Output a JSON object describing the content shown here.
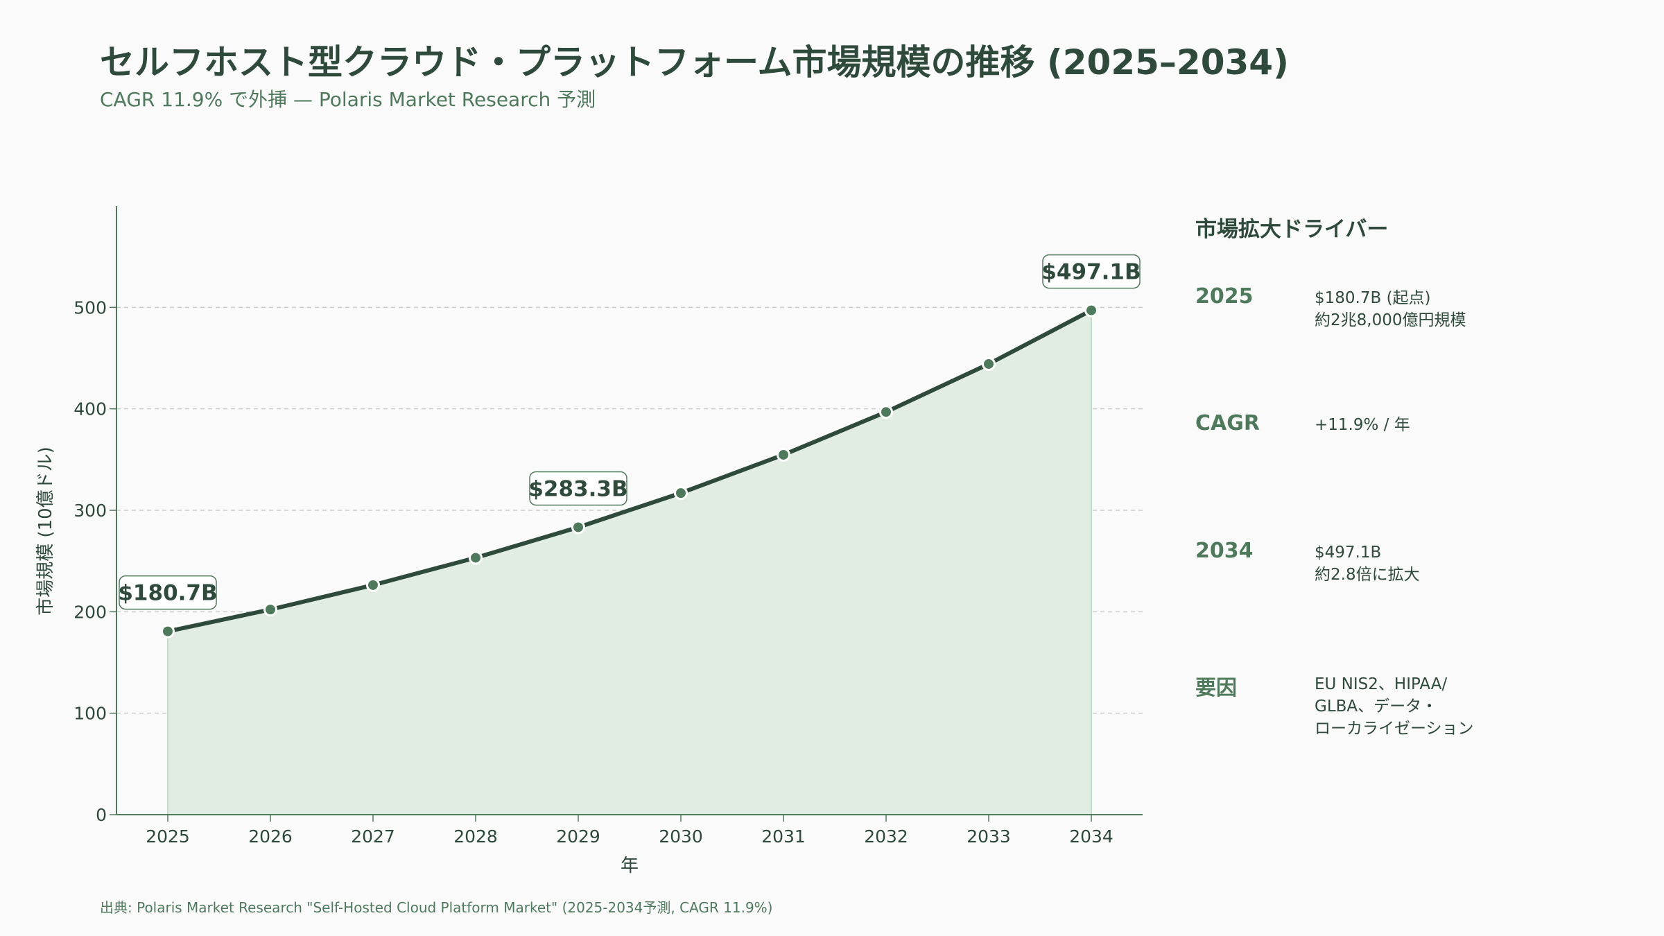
{
  "header": {
    "title": "セルフホスト型クラウド・プラットフォーム市場規模の推移 (2025–2034)",
    "subtitle": "CAGR 11.9% で外挿 — Polaris Market Research 予測"
  },
  "footer": {
    "source": "出典: Polaris Market Research \"Self-Hosted Cloud Platform Market\" (2025-2034予測, CAGR 11.9%)"
  },
  "chart_data": {
    "type": "area",
    "title": "セルフホスト型クラウド・プラットフォーム市場規模の推移 (2025–2034)",
    "xlabel": "年",
    "ylabel": "市場規模 (10億ドル)",
    "x": [
      2025,
      2026,
      2027,
      2028,
      2029,
      2030,
      2031,
      2032,
      2033,
      2034
    ],
    "values": [
      180.7,
      202.2,
      226.3,
      253.2,
      283.3,
      317.0,
      354.7,
      396.9,
      444.2,
      497.1
    ],
    "ylim": [
      0,
      600
    ],
    "yticks": [
      0,
      100,
      200,
      300,
      400,
      500
    ],
    "grid": true,
    "annotations": [
      {
        "x": 2025,
        "y": 180.7,
        "label": "$180.7B"
      },
      {
        "x": 2029,
        "y": 283.3,
        "label": "$283.3B"
      },
      {
        "x": 2034,
        "y": 497.1,
        "label": "$497.1B"
      }
    ],
    "colors": {
      "line": "#2d4a3a",
      "marker": "#4e7a5c",
      "fill": "#e1ece2",
      "fill_edge": "#c3dcc6",
      "grid": "#cccccc",
      "axis": "#4e7a5c"
    }
  },
  "drivers": {
    "heading": "市場拡大ドライバー",
    "items": [
      {
        "key": "2025",
        "lines": [
          "$180.7B (起点)",
          "約2兆8,000億円規模"
        ]
      },
      {
        "key": "CAGR",
        "lines": [
          "+11.9% / 年"
        ]
      },
      {
        "key": "2034",
        "lines": [
          "$497.1B",
          "約2.8倍に拡大"
        ]
      },
      {
        "key": "要因",
        "lines": [
          "EU NIS2、HIPAA/",
          "GLBA、データ・",
          "ローカライゼーション"
        ]
      }
    ]
  }
}
